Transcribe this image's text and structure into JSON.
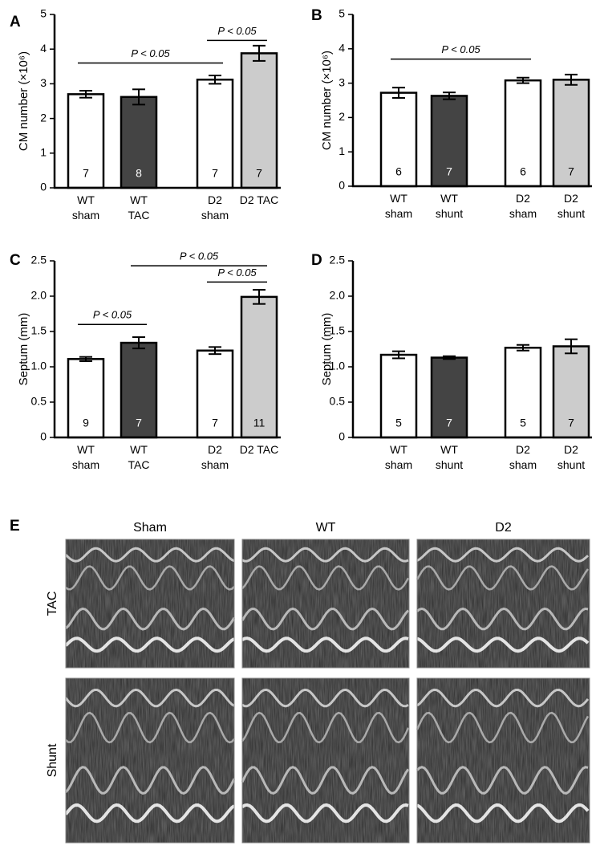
{
  "chart_data": [
    {
      "type": "bar",
      "label": "A",
      "ylabel": "CM number (×10⁶)",
      "categories": [
        "WT sham",
        "WT TAC",
        "D2 sham",
        "D2 TAC"
      ],
      "values": [
        2.7,
        2.62,
        3.12,
        3.88
      ],
      "errors": [
        0.1,
        0.22,
        0.12,
        0.22
      ],
      "n_labels": [
        7,
        8,
        7,
        7
      ],
      "colors": [
        "#ffffff",
        "#444444",
        "#ffffff",
        "#cccccc"
      ],
      "ylim": [
        0,
        5
      ],
      "yticks": [
        0,
        1,
        2,
        3,
        4,
        5
      ],
      "annotations": [
        {
          "text": "P < 0.05",
          "from": 0,
          "to": 2,
          "y": 3.6
        },
        {
          "text": "P < 0.05",
          "from": 2,
          "to": 3,
          "y": 4.25
        }
      ]
    },
    {
      "type": "bar",
      "label": "B",
      "ylabel": "CM number (×10⁶)",
      "categories": [
        "WT sham",
        "WT shunt",
        "D2 sham",
        "D2 shunt"
      ],
      "values": [
        2.72,
        2.63,
        3.08,
        3.1
      ],
      "errors": [
        0.15,
        0.1,
        0.08,
        0.15
      ],
      "n_labels": [
        6,
        7,
        6,
        7
      ],
      "colors": [
        "#ffffff",
        "#444444",
        "#ffffff",
        "#cccccc"
      ],
      "ylim": [
        0,
        5
      ],
      "yticks": [
        0,
        1,
        2,
        3,
        4,
        5
      ],
      "annotations": [
        {
          "text": "P < 0.05",
          "from": 0,
          "to": 2,
          "y": 3.7
        }
      ]
    },
    {
      "type": "bar",
      "label": "C",
      "ylabel": "Septum (mm)",
      "categories": [
        "WT sham",
        "WT TAC",
        "D2 sham",
        "D2 TAC"
      ],
      "values": [
        1.11,
        1.34,
        1.23,
        1.99
      ],
      "errors": [
        0.03,
        0.08,
        0.05,
        0.1
      ],
      "n_labels": [
        9,
        7,
        7,
        11
      ],
      "colors": [
        "#ffffff",
        "#444444",
        "#ffffff",
        "#cccccc"
      ],
      "ylim": [
        0,
        2.5
      ],
      "yticks": [
        0,
        0.5,
        {
          "value": 1,
          "label": "1.0"
        },
        1.5,
        {
          "value": 2,
          "label": "2.0"
        },
        2.5
      ],
      "annotations": [
        {
          "text": "P < 0.05",
          "from": 0,
          "to": 1,
          "y": 1.6
        },
        {
          "text": "P < 0.05",
          "from": 2,
          "to": 3,
          "y": 2.2
        },
        {
          "text": "P < 0.05",
          "from": 1,
          "to": 3,
          "y": 2.43
        }
      ]
    },
    {
      "type": "bar",
      "label": "D",
      "ylabel": "Septum (mm)",
      "categories": [
        "WT sham",
        "WT shunt",
        "D2 sham",
        "D2 shunt"
      ],
      "values": [
        1.17,
        1.13,
        1.27,
        1.29
      ],
      "errors": [
        0.05,
        0.02,
        0.04,
        0.1
      ],
      "n_labels": [
        5,
        7,
        5,
        7
      ],
      "colors": [
        "#ffffff",
        "#444444",
        "#ffffff",
        "#cccccc"
      ],
      "ylim": [
        0,
        2.5
      ],
      "yticks": [
        0,
        0.5,
        {
          "value": 1,
          "label": "1.0"
        },
        1.5,
        {
          "value": 2,
          "label": "2.0"
        },
        2.5
      ],
      "annotations": []
    }
  ],
  "panel_e": {
    "label": "E",
    "columns": [
      "Sham",
      "WT",
      "D2"
    ],
    "rows": [
      "TAC",
      "Shunt"
    ]
  }
}
